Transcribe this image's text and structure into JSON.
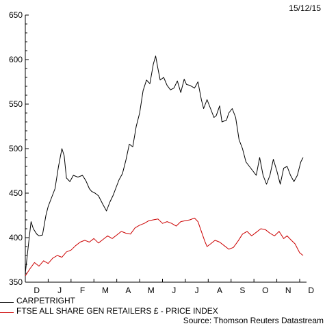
{
  "date_label": "15/12/15",
  "source": "Source: Thomson Reuters Datastream",
  "chart_data": {
    "type": "line",
    "ylim": [
      350,
      650
    ],
    "yticks": [
      350,
      400,
      450,
      500,
      550,
      600,
      650
    ],
    "ytick_labels": [
      "350",
      "400",
      "450",
      "500",
      "550",
      "600",
      "650"
    ],
    "x_months": [
      "D",
      "J",
      "F",
      "M",
      "A",
      "M",
      "J",
      "J",
      "A",
      "S",
      "O",
      "N",
      "D"
    ],
    "grid": false,
    "legend_position": "bottom-left",
    "series": [
      {
        "name": "CARPETRIGHT",
        "color": "#000000",
        "points": [
          [
            0,
            360
          ],
          [
            0.15,
            395
          ],
          [
            0.25,
            418
          ],
          [
            0.35,
            410
          ],
          [
            0.5,
            404
          ],
          [
            0.6,
            402
          ],
          [
            0.75,
            403
          ],
          [
            0.9,
            425
          ],
          [
            1.0,
            435
          ],
          [
            1.15,
            445
          ],
          [
            1.3,
            455
          ],
          [
            1.45,
            480
          ],
          [
            1.6,
            500
          ],
          [
            1.7,
            492
          ],
          [
            1.8,
            467
          ],
          [
            1.95,
            463
          ],
          [
            2.1,
            470
          ],
          [
            2.3,
            468
          ],
          [
            2.5,
            470
          ],
          [
            2.65,
            464
          ],
          [
            2.8,
            455
          ],
          [
            2.9,
            452
          ],
          [
            3.05,
            450
          ],
          [
            3.2,
            447
          ],
          [
            3.4,
            437
          ],
          [
            3.55,
            430
          ],
          [
            3.7,
            440
          ],
          [
            3.85,
            448
          ],
          [
            3.95,
            455
          ],
          [
            4.1,
            465
          ],
          [
            4.25,
            472
          ],
          [
            4.4,
            487
          ],
          [
            4.55,
            505
          ],
          [
            4.7,
            502
          ],
          [
            4.85,
            525
          ],
          [
            5.0,
            540
          ],
          [
            5.15,
            565
          ],
          [
            5.3,
            577
          ],
          [
            5.45,
            573
          ],
          [
            5.6,
            595
          ],
          [
            5.7,
            604
          ],
          [
            5.8,
            590
          ],
          [
            5.9,
            577
          ],
          [
            6.05,
            580
          ],
          [
            6.2,
            571
          ],
          [
            6.35,
            566
          ],
          [
            6.5,
            568
          ],
          [
            6.65,
            576
          ],
          [
            6.8,
            563
          ],
          [
            6.95,
            578
          ],
          [
            7.05,
            572
          ],
          [
            7.2,
            571
          ],
          [
            7.4,
            568
          ],
          [
            7.55,
            575
          ],
          [
            7.7,
            555
          ],
          [
            7.8,
            545
          ],
          [
            7.95,
            555
          ],
          [
            8.1,
            545
          ],
          [
            8.25,
            535
          ],
          [
            8.35,
            537
          ],
          [
            8.5,
            548
          ],
          [
            8.6,
            530
          ],
          [
            8.8,
            532
          ],
          [
            8.9,
            540
          ],
          [
            9.05,
            545
          ],
          [
            9.2,
            535
          ],
          [
            9.35,
            510
          ],
          [
            9.5,
            500
          ],
          [
            9.65,
            485
          ],
          [
            9.8,
            480
          ],
          [
            9.95,
            475
          ],
          [
            10.1,
            470
          ],
          [
            10.25,
            490
          ],
          [
            10.4,
            470
          ],
          [
            10.55,
            460
          ],
          [
            10.7,
            470
          ],
          [
            10.85,
            488
          ],
          [
            11.0,
            475
          ],
          [
            11.15,
            460
          ],
          [
            11.3,
            478
          ],
          [
            11.45,
            480
          ],
          [
            11.6,
            470
          ],
          [
            11.75,
            463
          ],
          [
            11.9,
            470
          ],
          [
            12.05,
            485
          ],
          [
            12.15,
            490
          ]
        ]
      },
      {
        "name": "FTSE ALL SHARE GEN RETAILERS £ - PRICE INDEX",
        "color": "#cc0000",
        "points": [
          [
            0,
            357
          ],
          [
            0.2,
            365
          ],
          [
            0.4,
            372
          ],
          [
            0.6,
            368
          ],
          [
            0.8,
            374
          ],
          [
            1.0,
            371
          ],
          [
            1.2,
            377
          ],
          [
            1.4,
            380
          ],
          [
            1.6,
            378
          ],
          [
            1.8,
            384
          ],
          [
            2.0,
            386
          ],
          [
            2.2,
            391
          ],
          [
            2.4,
            395
          ],
          [
            2.6,
            397
          ],
          [
            2.8,
            395
          ],
          [
            3.0,
            399
          ],
          [
            3.2,
            394
          ],
          [
            3.4,
            398
          ],
          [
            3.6,
            402
          ],
          [
            3.8,
            399
          ],
          [
            4.0,
            403
          ],
          [
            4.2,
            407
          ],
          [
            4.4,
            405
          ],
          [
            4.6,
            404
          ],
          [
            4.8,
            411
          ],
          [
            5.0,
            414
          ],
          [
            5.2,
            416
          ],
          [
            5.4,
            419
          ],
          [
            5.6,
            420
          ],
          [
            5.8,
            421
          ],
          [
            6.0,
            416
          ],
          [
            6.2,
            418
          ],
          [
            6.4,
            416
          ],
          [
            6.6,
            413
          ],
          [
            6.8,
            418
          ],
          [
            7.0,
            419
          ],
          [
            7.2,
            420
          ],
          [
            7.4,
            422
          ],
          [
            7.55,
            418
          ],
          [
            7.7,
            407
          ],
          [
            7.85,
            396
          ],
          [
            7.95,
            390
          ],
          [
            8.1,
            393
          ],
          [
            8.3,
            397
          ],
          [
            8.5,
            395
          ],
          [
            8.7,
            391
          ],
          [
            8.9,
            387
          ],
          [
            9.1,
            389
          ],
          [
            9.3,
            396
          ],
          [
            9.5,
            404
          ],
          [
            9.7,
            407
          ],
          [
            9.9,
            402
          ],
          [
            10.1,
            406
          ],
          [
            10.3,
            410
          ],
          [
            10.5,
            409
          ],
          [
            10.7,
            405
          ],
          [
            10.9,
            402
          ],
          [
            11.1,
            407
          ],
          [
            11.3,
            399
          ],
          [
            11.45,
            402
          ],
          [
            11.6,
            398
          ],
          [
            11.8,
            393
          ],
          [
            11.9,
            388
          ],
          [
            12.0,
            383
          ],
          [
            12.15,
            380
          ]
        ]
      }
    ]
  }
}
